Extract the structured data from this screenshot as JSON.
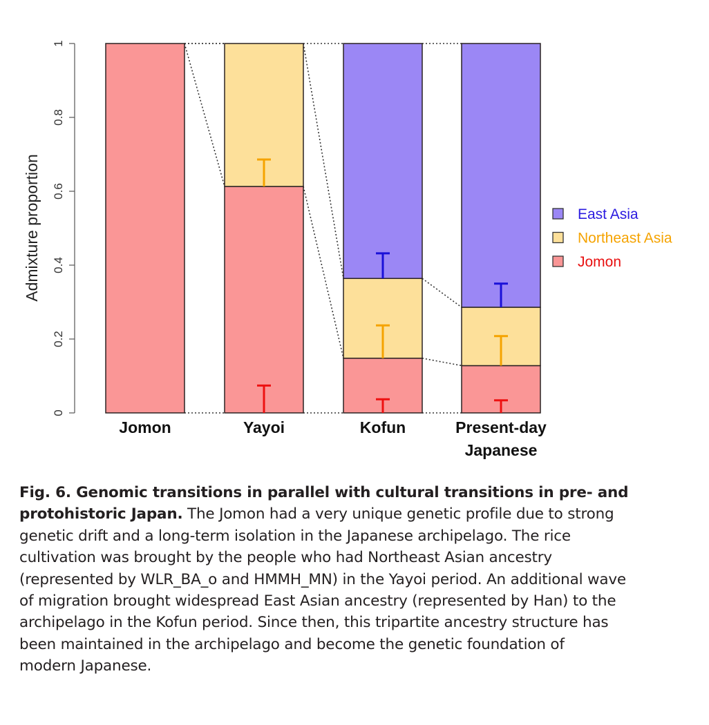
{
  "chart_data": {
    "type": "bar",
    "stacked": true,
    "ylabel": "Admixture proportion",
    "ylim": [
      0,
      1
    ],
    "yticks": [
      "0",
      "0.2",
      "0.4",
      "0.6",
      "0.8",
      "1"
    ],
    "categories": [
      "Jomon",
      "Yayoi",
      "Kofun",
      "Present-day Japanese"
    ],
    "category_lines": [
      [
        "Jomon"
      ],
      [
        "Yayoi"
      ],
      [
        "Kofun"
      ],
      [
        "Present-day",
        "Japanese"
      ]
    ],
    "legend_position": "right",
    "series": [
      {
        "name": "Jomon",
        "color": "#fa9696",
        "error_color": "#ee1111",
        "values": [
          1.0,
          0.613,
          0.148,
          0.128
        ],
        "error_upper": [
          null,
          0.074,
          0.037,
          0.034
        ]
      },
      {
        "name": "Northeast Asia",
        "color": "#fde09a",
        "error_color": "#f5a300",
        "values": [
          0.0,
          0.387,
          0.216,
          0.158
        ],
        "error_upper": [
          null,
          0.686,
          0.237,
          0.208
        ]
      },
      {
        "name": "East Asia",
        "color": "#9b87f5",
        "error_color": "#1a10d8",
        "values": [
          0.0,
          0.0,
          0.636,
          0.714
        ],
        "error_upper": [
          null,
          null,
          0.432,
          0.35
        ]
      }
    ],
    "legend": [
      {
        "name": "East Asia",
        "color": "#9b87f5",
        "text_color": "#2a1ae0"
      },
      {
        "name": "Northeast Asia",
        "color": "#fde09a",
        "text_color": "#f5a300"
      },
      {
        "name": "Jomon",
        "color": "#fa9696",
        "text_color": "#e81010"
      }
    ]
  },
  "caption": {
    "lines": [
      {
        "bold": "Fig. 6. Genomic transitions in parallel with cultural transitions in pre- and",
        "text": ""
      },
      {
        "bold": "protohistoric Japan.",
        "text": " The Jomon had a very unique genetic profile due to strong"
      },
      {
        "bold": "",
        "text": "genetic drift and a long-term isolation in the Japanese archipelago. The rice"
      },
      {
        "bold": "",
        "text": "cultivation was brought by the people who had Northeast Asian ancestry"
      },
      {
        "bold": "",
        "text": "(represented by WLR_BA_o and HMMH_MN) in the Yayoi period. An additional wave"
      },
      {
        "bold": "",
        "text": "of migration brought widespread East Asian ancestry (represented by Han) to the"
      },
      {
        "bold": "",
        "text": "archipelago in the Kofun period. Since then, this tripartite ancestry structure has"
      },
      {
        "bold": "",
        "text": "been maintained in the archipelago and become the genetic foundation of"
      },
      {
        "bold": "",
        "text": "modern Japanese."
      }
    ]
  }
}
